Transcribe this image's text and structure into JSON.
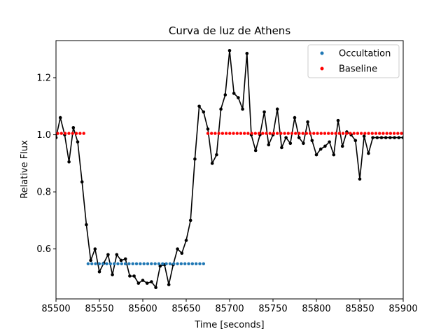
{
  "chart_data": {
    "type": "line",
    "title": "Curva de luz de Athens",
    "xlabel": "Time [seconds]",
    "ylabel": "Relative Flux",
    "xlim": [
      85500,
      85900
    ],
    "ylim": [
      0.425,
      1.33
    ],
    "x_ticks": [
      85500,
      85550,
      85600,
      85650,
      85700,
      85750,
      85800,
      85850,
      85900
    ],
    "y_ticks": [
      0.6,
      0.8,
      1.0,
      1.2
    ],
    "y_tick_labels": [
      "0.6",
      "0.8",
      "1.0",
      "1.2"
    ],
    "grid": false,
    "legend_position": "top-right",
    "colors": {
      "data": "#000000",
      "occultation": "#1f77b4",
      "baseline": "#ff0000"
    },
    "series": [
      {
        "role": "data",
        "style": "line-with-markers",
        "x": [
          85500,
          85505,
          85510,
          85515,
          85520,
          85525,
          85530,
          85535,
          85540,
          85545,
          85550,
          85555,
          85560,
          85565,
          85570,
          85575,
          85580,
          85585,
          85590,
          85595,
          85600,
          85605,
          85610,
          85615,
          85620,
          85625,
          85630,
          85635,
          85640,
          85645,
          85650,
          85655,
          85660,
          85665,
          85670,
          85675,
          85680,
          85685,
          85690,
          85695,
          85700,
          85705,
          85710,
          85715,
          85720,
          85725,
          85730,
          85735,
          85740,
          85745,
          85750,
          85755,
          85760,
          85765,
          85770,
          85775,
          85780,
          85785,
          85790,
          85795,
          85800,
          85805,
          85810,
          85815,
          85820,
          85825,
          85830,
          85835,
          85840,
          85845,
          85850,
          85855,
          85860,
          85865,
          85870,
          85875,
          85880,
          85885,
          85890,
          85895,
          85900
        ],
        "y": [
          0.99,
          1.06,
          1.0,
          0.905,
          1.025,
          0.975,
          0.835,
          0.685,
          0.56,
          0.6,
          0.52,
          0.55,
          0.58,
          0.51,
          0.58,
          0.56,
          0.565,
          0.505,
          0.505,
          0.48,
          0.49,
          0.48,
          0.485,
          0.465,
          0.54,
          0.545,
          0.475,
          0.545,
          0.6,
          0.585,
          0.63,
          0.7,
          0.915,
          1.1,
          1.08,
          1.02,
          0.9,
          0.93,
          1.09,
          1.14,
          1.295,
          1.145,
          1.13,
          1.09,
          1.285,
          1.0,
          0.945,
          1.0,
          1.08,
          0.965,
          1.0,
          1.09,
          0.955,
          0.99,
          0.97,
          1.06,
          0.99,
          0.97,
          1.045,
          0.98,
          0.93,
          0.95,
          0.96,
          0.975,
          0.93,
          1.05,
          0.96,
          1.01,
          1.0,
          0.98,
          0.845,
          0.995,
          0.935,
          0.99,
          0.99,
          0.99,
          0.99,
          0.99,
          0.99,
          0.99,
          0.99
        ]
      },
      {
        "name": "Occultation",
        "role": "occultation",
        "style": "markers",
        "x_start": 85537,
        "x_end": 85670,
        "count": 32,
        "y": 0.548
      },
      {
        "name": "Baseline",
        "role": "baseline",
        "style": "markers",
        "segments": [
          {
            "x_start": 85502,
            "x_end": 85532,
            "count": 8
          },
          {
            "x_start": 85675,
            "x_end": 85898,
            "count": 54
          }
        ],
        "y": 1.005
      }
    ]
  }
}
